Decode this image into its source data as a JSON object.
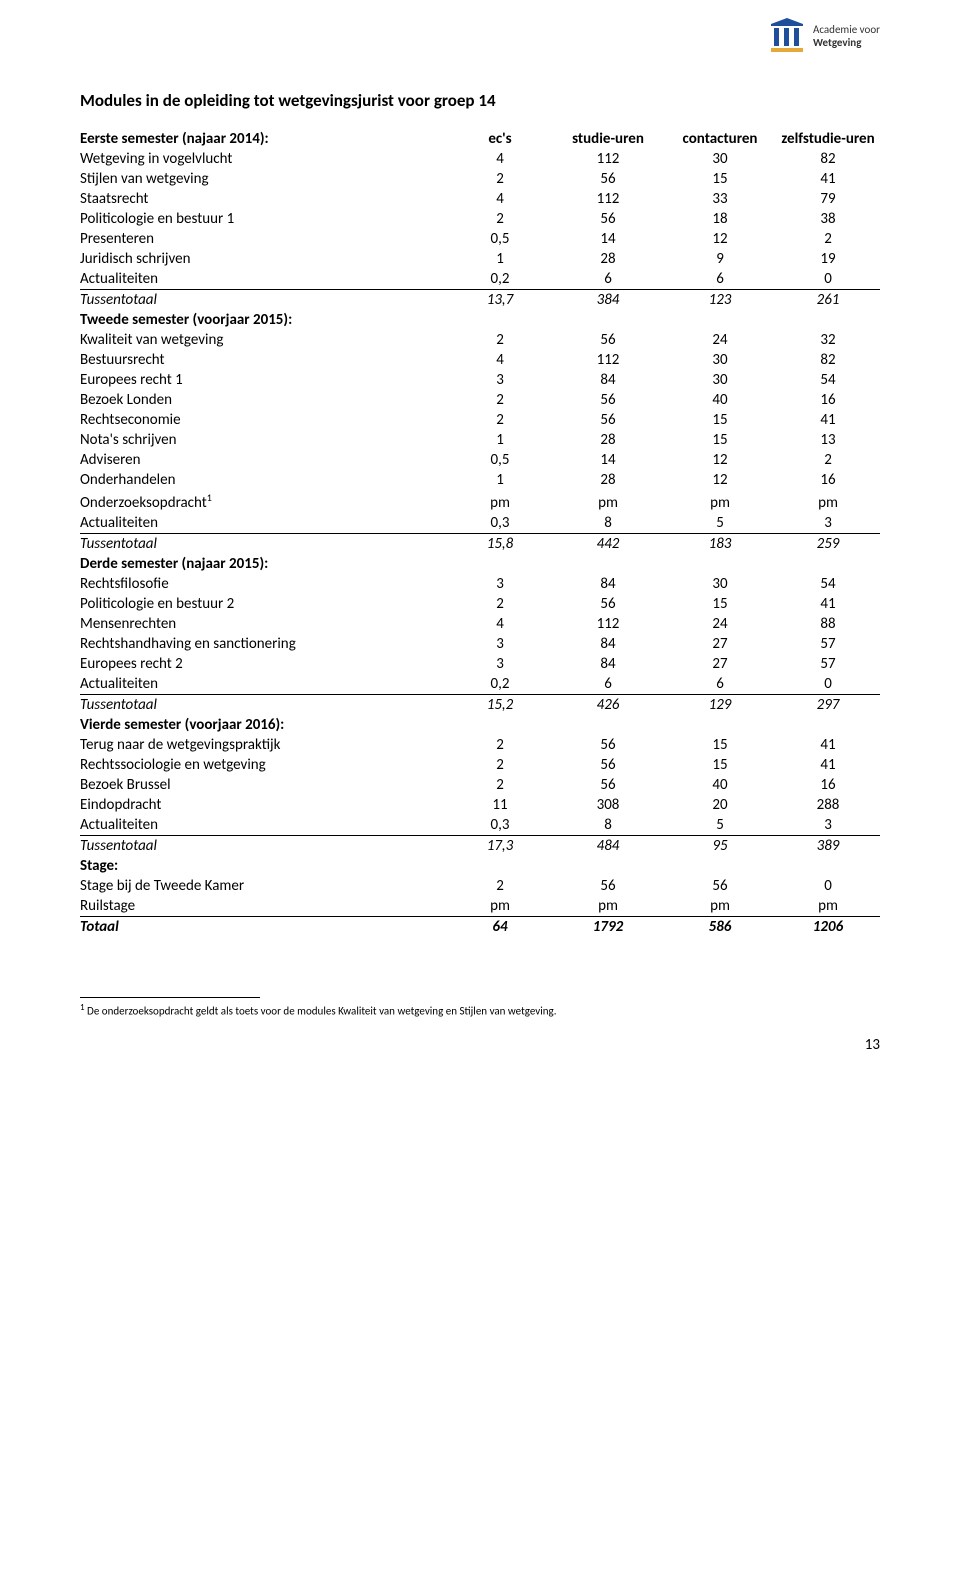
{
  "logo": {
    "primary_color": "#1f4e9b",
    "accent_color": "#e5a93a",
    "line1": "Academie voor",
    "line2": "Wetgeving"
  },
  "title": "Modules in de opleiding tot wetgevingsjurist voor groep 14",
  "headers": {
    "name": "Eerste semester (najaar 2014):",
    "ec": "ec's",
    "stu": "studie-uren",
    "con": "contacturen",
    "zelf": "zelfstudie-uren"
  },
  "sem1": {
    "heading": "Eerste semester (najaar 2014):",
    "rows": [
      {
        "name": "Wetgeving in vogelvlucht",
        "ec": "4",
        "stu": "112",
        "con": "30",
        "zelf": "82"
      },
      {
        "name": "Stijlen van wetgeving",
        "ec": "2",
        "stu": "56",
        "con": "15",
        "zelf": "41"
      },
      {
        "name": "Staatsrecht",
        "ec": "4",
        "stu": "112",
        "con": "33",
        "zelf": "79"
      },
      {
        "name": "Politicologie en bestuur 1",
        "ec": "2",
        "stu": "56",
        "con": "18",
        "zelf": "38"
      },
      {
        "name": "Presenteren",
        "ec": "0,5",
        "stu": "14",
        "con": "12",
        "zelf": "2"
      },
      {
        "name": "Juridisch schrijven",
        "ec": "1",
        "stu": "28",
        "con": "9",
        "zelf": "19"
      },
      {
        "name": "Actualiteiten",
        "ec": "0,2",
        "stu": "6",
        "con": "6",
        "zelf": "0",
        "underline": true
      }
    ],
    "subtotal": {
      "name": "Tussentotaal",
      "ec": "13,7",
      "stu": "384",
      "con": "123",
      "zelf": "261"
    }
  },
  "sem2": {
    "heading": "Tweede semester (voorjaar 2015):",
    "rows": [
      {
        "name": "Kwaliteit van wetgeving",
        "ec": "2",
        "stu": "56",
        "con": "24",
        "zelf": "32"
      },
      {
        "name": "Bestuursrecht",
        "ec": "4",
        "stu": "112",
        "con": "30",
        "zelf": "82"
      },
      {
        "name": "Europees recht 1",
        "ec": "3",
        "stu": "84",
        "con": "30",
        "zelf": "54"
      },
      {
        "name": "Bezoek Londen",
        "ec": "2",
        "stu": "56",
        "con": "40",
        "zelf": "16"
      },
      {
        "name": "Rechtseconomie",
        "ec": "2",
        "stu": "56",
        "con": "15",
        "zelf": "41"
      },
      {
        "name": "Nota's schrijven",
        "ec": "1",
        "stu": "28",
        "con": "15",
        "zelf": "13"
      },
      {
        "name": "Adviseren",
        "ec": "0,5",
        "stu": "14",
        "con": "12",
        "zelf": "2"
      },
      {
        "name": "Onderhandelen",
        "ec": "1",
        "stu": "28",
        "con": "12",
        "zelf": "16"
      },
      {
        "name": "Onderzoeksopdracht",
        "sup": "1",
        "ec": "pm",
        "stu": "pm",
        "con": "pm",
        "zelf": "pm"
      },
      {
        "name": "Actualiteiten",
        "ec": "0,3",
        "stu": "8",
        "con": "5",
        "zelf": "3",
        "underline": true
      }
    ],
    "subtotal": {
      "name": "Tussentotaal",
      "ec": "15,8",
      "stu": "442",
      "con": "183",
      "zelf": "259"
    }
  },
  "sem3": {
    "heading": "Derde semester (najaar 2015):",
    "rows": [
      {
        "name": "Rechtsfilosofie",
        "ec": "3",
        "stu": "84",
        "con": "30",
        "zelf": "54"
      },
      {
        "name": "Politicologie en bestuur 2",
        "ec": "2",
        "stu": "56",
        "con": "15",
        "zelf": "41"
      },
      {
        "name": "Mensenrechten",
        "ec": "4",
        "stu": "112",
        "con": "24",
        "zelf": "88"
      },
      {
        "name": "Rechtshandhaving en sanctionering",
        "ec": "3",
        "stu": "84",
        "con": "27",
        "zelf": "57"
      },
      {
        "name": "Europees recht 2",
        "ec": "3",
        "stu": "84",
        "con": "27",
        "zelf": "57"
      },
      {
        "name": "Actualiteiten",
        "ec": "0,2",
        "stu": "6",
        "con": "6",
        "zelf": "0",
        "underline": true
      }
    ],
    "subtotal": {
      "name": "Tussentotaal",
      "ec": "15,2",
      "stu": "426",
      "con": "129",
      "zelf": "297"
    }
  },
  "sem4": {
    "heading": "Vierde semester (voorjaar 2016):",
    "rows": [
      {
        "name": "Terug naar de wetgevingspraktijk",
        "ec": "2",
        "stu": "56",
        "con": "15",
        "zelf": "41"
      },
      {
        "name": "Rechtssociologie en wetgeving",
        "ec": "2",
        "stu": "56",
        "con": "15",
        "zelf": "41"
      },
      {
        "name": "Bezoek Brussel",
        "ec": "2",
        "stu": "56",
        "con": "40",
        "zelf": "16"
      },
      {
        "name": "Eindopdracht",
        "ec": "11",
        "stu": "308",
        "con": "20",
        "zelf": "288"
      },
      {
        "name": "Actualiteiten",
        "ec": "0,3",
        "stu": "8",
        "con": "5",
        "zelf": "3",
        "underline": true
      }
    ],
    "subtotal": {
      "name": "Tussentotaal",
      "ec": "17,3",
      "stu": "484",
      "con": "95",
      "zelf": "389"
    }
  },
  "stage": {
    "heading": "Stage:",
    "rows": [
      {
        "name": "Stage bij de Tweede Kamer",
        "ec": "2",
        "stu": "56",
        "con": "56",
        "zelf": "0"
      },
      {
        "name": "Ruilstage",
        "ec": "pm",
        "stu": "pm",
        "con": "pm",
        "zelf": "pm",
        "underline": true
      }
    ]
  },
  "totaal": {
    "name": "Totaal",
    "ec": "64",
    "stu": "1792",
    "con": "586",
    "zelf": "1206"
  },
  "footnote": {
    "marker": "1",
    "text": " De onderzoeksopdracht geldt als toets voor de modules Kwaliteit van wetgeving en Stijlen van wetgeving."
  },
  "page_number": "13"
}
